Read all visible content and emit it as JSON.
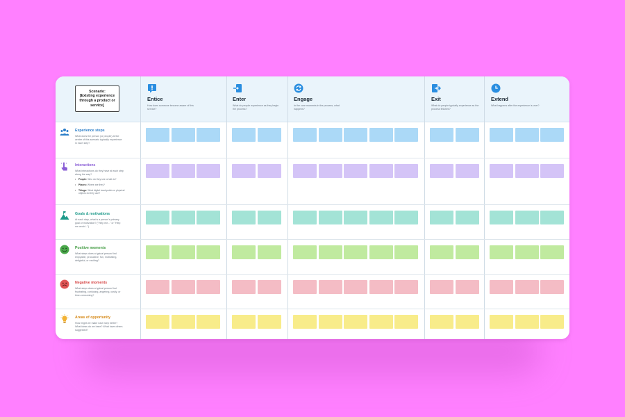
{
  "colors": {
    "background": "#ff80ff",
    "header": "#eaf4fb",
    "stage_icon": "#2a8ee0"
  },
  "scenario": "Scenario:\n[Existing experience\nthrough a product or\nservice]",
  "stages": [
    {
      "key": "entice",
      "icon": "exclamation-icon",
      "title": "Entice",
      "desc": "How does someone become aware of this service?"
    },
    {
      "key": "enter",
      "icon": "enter-arrow-icon",
      "title": "Enter",
      "desc": "What do people experience as they begin the process?"
    },
    {
      "key": "engage",
      "icon": "refresh-icon",
      "title": "Engage",
      "desc": "In the core moments in the process, what happens?"
    },
    {
      "key": "exit",
      "icon": "exit-arrow-icon",
      "title": "Exit",
      "desc": "What do people typically experience as the process finishes?"
    },
    {
      "key": "extend",
      "icon": "clock-icon",
      "title": "Extend",
      "desc": "What happens after the experience is over?"
    }
  ],
  "rows": [
    {
      "key": "experience-steps",
      "icon": "people-icon",
      "title": "Experience steps",
      "title_color": "#2a7dc8",
      "note_color": "#abd9f7",
      "desc": "What does the person (or people) at the center of this scenario typically experience in each step?"
    },
    {
      "key": "interactions",
      "icon": "pointer-hand-icon",
      "title": "Interactions",
      "title_color": "#8b5fd6",
      "note_color": "#d4c4f7",
      "desc": "What interactions do they have at each step along the way?",
      "bullets": [
        {
          "bold": "People:",
          "text": " Who do they see or talk to?"
        },
        {
          "bold": "Places:",
          "text": " Where are they?"
        },
        {
          "bold": "Things:",
          "text": " What digital touchpoints or physical objects do they use?"
        }
      ]
    },
    {
      "key": "goals-motivations",
      "icon": "mountain-flag-icon",
      "title": "Goals & motivations",
      "title_color": "#1d9a8a",
      "note_color": "#a3e3d6",
      "desc": "At each step, what is a person's primary goal or motivation? (\"Help me...\" or \"Help me avoid...\")"
    },
    {
      "key": "positive-moments",
      "icon": "smile-face-icon",
      "title": "Positive moments",
      "title_color": "#3f9a3f",
      "note_color": "#c0ea9f",
      "desc": "What steps does a typical person find enjoyable, productive, fun, motivating, delightful, or exciting?"
    },
    {
      "key": "negative-moments",
      "icon": "frown-face-icon",
      "title": "Negative moments",
      "title_color": "#d64848",
      "note_color": "#f4bcc5",
      "desc": "What steps does a typical person find frustrating, confusing, angering, costly, or time-consuming?"
    },
    {
      "key": "areas-of-opportunity",
      "icon": "lightbulb-icon",
      "title": "Areas of opportunity",
      "title_color": "#d68a1a",
      "note_color": "#f8ec8a",
      "desc": "How might we make each step better? What ideas do we have? What have others suggested?"
    }
  ],
  "notes_per_stage": [
    3,
    2,
    5,
    2,
    3
  ]
}
